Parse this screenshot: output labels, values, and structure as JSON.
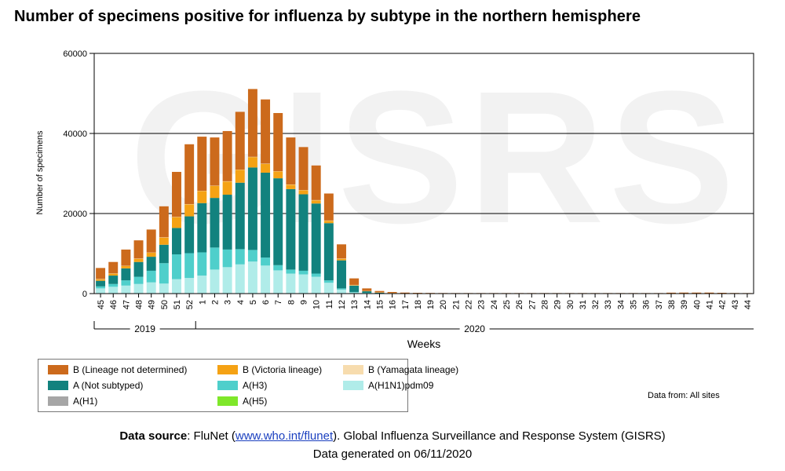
{
  "header": {
    "title": "Number of specimens positive for influenza by subtype in the northern hemisphere"
  },
  "watermark": "GISRS",
  "colors": {
    "B (Lineage not determined)": "#cc6a1c",
    "B (Victoria lineage)": "#f5a214",
    "B (Yamagata lineage)": "#f7dcae",
    "A (Not subtyped)": "#12827e",
    "A(H3)": "#4fcfcb",
    "A(H1N1)pdm09": "#b0ece9",
    "A(H1)": "#a6a6a6",
    "A(H5)": "#7fe72a"
  },
  "chart_data": {
    "type": "bar",
    "stacked": true,
    "title": "Number of specimens positive for influenza by subtype in the northern hemisphere",
    "xlabel": "Weeks",
    "ylabel": "Number of specimens",
    "ylim": [
      0,
      60000
    ],
    "yticks": [
      0,
      20000,
      40000,
      60000
    ],
    "gridlines": [
      20000,
      40000
    ],
    "categories": [
      "45",
      "46",
      "47",
      "48",
      "49",
      "50",
      "51",
      "52",
      "1",
      "2",
      "3",
      "4",
      "5",
      "6",
      "7",
      "8",
      "9",
      "10",
      "11",
      "12",
      "13",
      "14",
      "15",
      "16",
      "17",
      "18",
      "19",
      "20",
      "21",
      "22",
      "23",
      "24",
      "25",
      "26",
      "27",
      "28",
      "29",
      "30",
      "31",
      "32",
      "33",
      "34",
      "35",
      "36",
      "37",
      "38",
      "39",
      "40",
      "41",
      "42",
      "43",
      "44"
    ],
    "year_groups": [
      {
        "label": "2019",
        "from": "45",
        "to": "52"
      },
      {
        "label": "2020",
        "from": "1",
        "to": "44"
      }
    ],
    "series": [
      {
        "name": "A(H1N1)pdm09",
        "values": [
          1300,
          1700,
          2000,
          2400,
          2800,
          2500,
          3600,
          3900,
          4500,
          6000,
          6600,
          7300,
          8000,
          7000,
          5800,
          5000,
          4800,
          4200,
          2700,
          1000,
          300,
          150,
          60,
          30,
          20,
          15,
          12,
          10,
          10,
          10,
          10,
          10,
          10,
          10,
          10,
          10,
          10,
          10,
          10,
          10,
          10,
          10,
          10,
          10,
          10,
          10,
          10,
          10,
          10,
          10,
          10,
          10
        ]
      },
      {
        "name": "A(H3)",
        "values": [
          500,
          700,
          1300,
          1800,
          2900,
          5100,
          6200,
          6200,
          5800,
          5500,
          4400,
          3800,
          2900,
          2000,
          1300,
          1000,
          900,
          800,
          600,
          300,
          100,
          50,
          30,
          15,
          10,
          10,
          5,
          5,
          5,
          5,
          5,
          5,
          5,
          5,
          5,
          5,
          5,
          5,
          5,
          5,
          5,
          5,
          5,
          5,
          5,
          5,
          5,
          5,
          5,
          5,
          5,
          5
        ]
      },
      {
        "name": "A (Not subtyped)",
        "values": [
          1400,
          2100,
          3000,
          3700,
          3500,
          4600,
          6600,
          9200,
          12300,
          12400,
          13700,
          16600,
          20600,
          21200,
          21700,
          20100,
          19100,
          17500,
          14300,
          7000,
          1600,
          400,
          200,
          100,
          60,
          40,
          30,
          20,
          20,
          20,
          20,
          20,
          20,
          20,
          20,
          20,
          20,
          20,
          20,
          20,
          20,
          20,
          20,
          20,
          20,
          20,
          20,
          20,
          20,
          20,
          20,
          20
        ]
      },
      {
        "name": "B (Victoria lineage)",
        "values": [
          400,
          500,
          600,
          800,
          1000,
          1800,
          2700,
          3000,
          3000,
          3000,
          3300,
          3200,
          2600,
          2200,
          1700,
          1100,
          1000,
          800,
          600,
          400,
          150,
          50,
          20,
          10,
          5,
          5,
          5,
          5,
          5,
          5,
          5,
          5,
          5,
          5,
          5,
          5,
          5,
          5,
          5,
          5,
          5,
          5,
          5,
          5,
          5,
          5,
          5,
          5,
          5,
          5,
          5,
          5
        ]
      },
      {
        "name": "B (Yamagata lineage)",
        "values": [
          50,
          50,
          50,
          60,
          60,
          60,
          60,
          60,
          60,
          60,
          60,
          60,
          60,
          60,
          60,
          60,
          60,
          60,
          60,
          60,
          20,
          10,
          5,
          5,
          5,
          5,
          5,
          5,
          5,
          5,
          5,
          5,
          5,
          5,
          5,
          5,
          5,
          5,
          5,
          5,
          5,
          5,
          5,
          5,
          5,
          5,
          5,
          5,
          5,
          5,
          5,
          5
        ]
      },
      {
        "name": "B (Lineage not determined)",
        "values": [
          2750,
          2850,
          4050,
          4540,
          5740,
          7740,
          11240,
          14940,
          13540,
          12040,
          12540,
          14440,
          16940,
          16040,
          14540,
          11740,
          10740,
          8640,
          6740,
          3540,
          1630,
          640,
          335,
          240,
          150,
          110,
          100,
          90,
          80,
          80,
          80,
          80,
          80,
          80,
          80,
          80,
          80,
          80,
          80,
          80,
          80,
          80,
          80,
          80,
          80,
          180,
          200,
          200,
          200,
          150,
          100,
          80
        ]
      },
      {
        "name": "A(H1)",
        "values": [
          0,
          0,
          0,
          0,
          0,
          0,
          0,
          0,
          0,
          0,
          0,
          0,
          0,
          0,
          0,
          0,
          0,
          0,
          0,
          0,
          0,
          0,
          0,
          0,
          0,
          0,
          0,
          0,
          0,
          0,
          0,
          0,
          0,
          0,
          0,
          0,
          0,
          0,
          0,
          0,
          0,
          0,
          0,
          0,
          0,
          0,
          0,
          0,
          0,
          0,
          0,
          0
        ]
      },
      {
        "name": "A(H5)",
        "values": [
          0,
          0,
          0,
          0,
          0,
          0,
          0,
          0,
          0,
          0,
          0,
          0,
          0,
          0,
          0,
          0,
          0,
          0,
          0,
          0,
          0,
          0,
          0,
          0,
          0,
          0,
          0,
          0,
          0,
          0,
          0,
          0,
          0,
          0,
          0,
          0,
          0,
          0,
          0,
          0,
          0,
          0,
          0,
          0,
          0,
          0,
          0,
          0,
          0,
          0,
          0,
          0
        ]
      }
    ],
    "legend": [
      [
        "B (Lineage not determined)",
        "A (Not subtyped)",
        "A(H1)"
      ],
      [
        "B (Victoria lineage)",
        "A(H3)",
        "A(H5)"
      ],
      [
        "B (Yamagata lineage)",
        "A(H1N1)pdm09"
      ]
    ],
    "legend_position": "bottom-left"
  },
  "data_from": "Data from: All sites",
  "footer": {
    "source_label": "Data source",
    "source_sep": ": FluNet (",
    "source_link": "www.who.int/flunet",
    "source_rest": "). Global Influenza Surveillance and Response System (GISRS)",
    "generated": "Data generated on 06/11/2020"
  }
}
